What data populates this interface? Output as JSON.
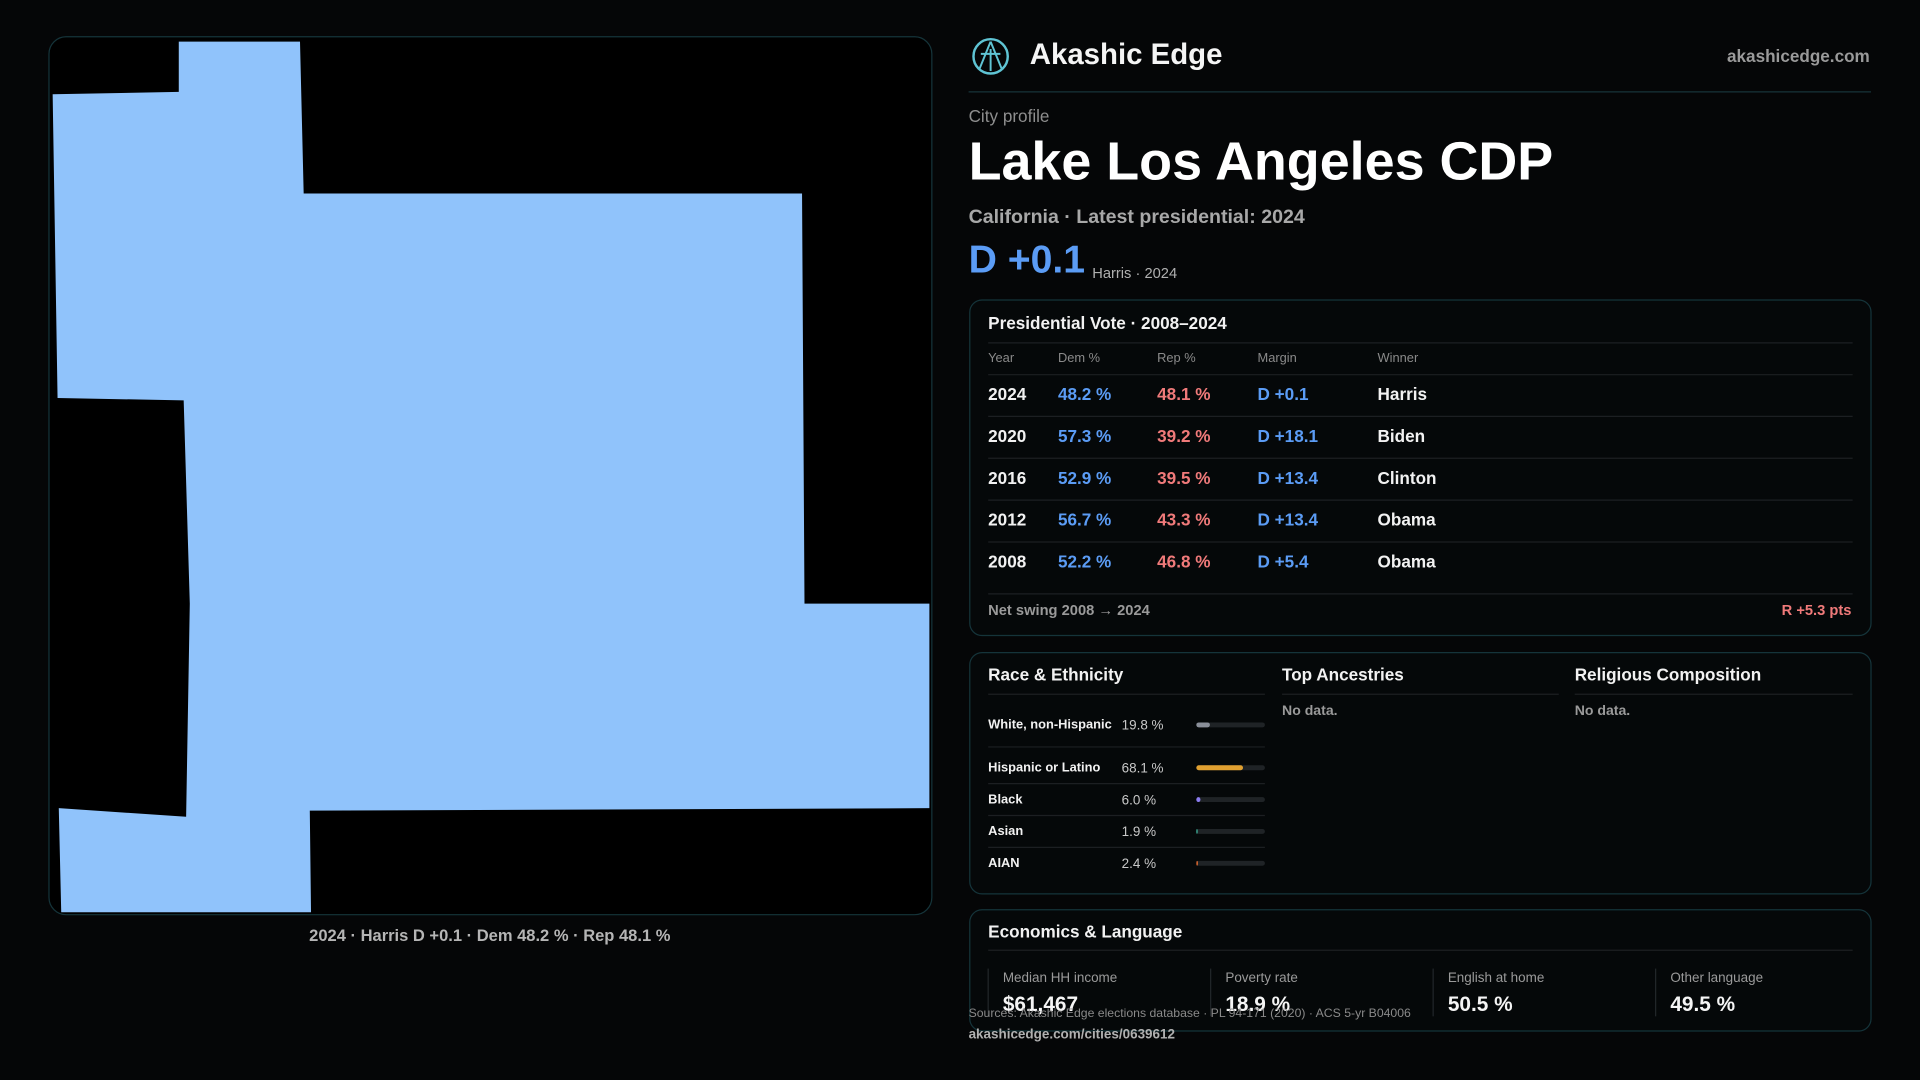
{
  "header": {
    "brand": "Akashic Edge",
    "site": "akashicedge.com"
  },
  "map": {
    "caption": "2024 · Harris D +0.1 · Dem 48.2 % · Rep 48.1 %"
  },
  "profile": {
    "eyebrow": "City profile",
    "title": "Lake Los Angeles CDP",
    "subtitle": "California · Latest presidential: 2024",
    "margin": "D +0.1",
    "margin_note": "Harris · 2024"
  },
  "vote_table": {
    "title": "Presidential Vote · 2008–2024",
    "columns": [
      "Year",
      "Dem %",
      "Rep %",
      "Margin",
      "Winner"
    ],
    "rows": [
      [
        "2024",
        "48.2 %",
        "48.1 %",
        "D +0.1",
        "Harris"
      ],
      [
        "2020",
        "57.3 %",
        "39.2 %",
        "D +18.1",
        "Biden"
      ],
      [
        "2016",
        "52.9 %",
        "39.5 %",
        "D +13.4",
        "Clinton"
      ],
      [
        "2012",
        "56.7 %",
        "43.3 %",
        "D +13.4",
        "Obama"
      ],
      [
        "2008",
        "52.2 %",
        "46.8 %",
        "D +5.4",
        "Obama"
      ]
    ],
    "footer_label": "Net swing 2008 → 2024",
    "footer_value": "R +5.3 pts"
  },
  "race": {
    "title": "Race & Ethnicity",
    "rows": [
      {
        "label": "White, non-Hispanic",
        "value": 19.8,
        "value_label": "19.8 %",
        "color": "#8a8f99"
      },
      {
        "label": "Hispanic or Latino",
        "value": 68.1,
        "value_label": "68.1 %",
        "color": "#e0a030"
      },
      {
        "label": "Black",
        "value": 6.0,
        "value_label": "6.0 %",
        "color": "#8b7cf0"
      },
      {
        "label": "Asian",
        "value": 1.9,
        "value_label": "1.9 %",
        "color": "#3fb8a0"
      },
      {
        "label": "AIAN",
        "value": 2.4,
        "value_label": "2.4 %",
        "color": "#d0622e"
      }
    ]
  },
  "ancestries": {
    "title": "Top Ancestries",
    "note": "No data."
  },
  "religion": {
    "title": "Religious Composition",
    "note": "No data."
  },
  "economics": {
    "title": "Economics & Language",
    "stats": [
      {
        "label": "Median HH income",
        "value": "$61,467"
      },
      {
        "label": "Poverty rate",
        "value": "18.9 %"
      },
      {
        "label": "English at home",
        "value": "50.5 %"
      },
      {
        "label": "Other language",
        "value": "49.5 %"
      }
    ]
  },
  "sources": {
    "text": "Sources: Akashic Edge elections database · PL 94-171 (2020) · ACS 5-yr B04006",
    "url": "akashicedge.com/cities/0639612"
  }
}
